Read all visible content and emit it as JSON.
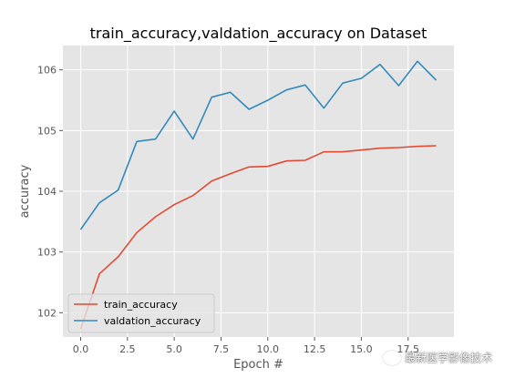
{
  "chart_data": {
    "type": "line",
    "title": "train_accuracy,valdation_accuracy on Dataset",
    "xlabel": "Epoch #",
    "ylabel": "accuracy",
    "xlim": [
      -0.95,
      19.95
    ],
    "ylim": [
      101.6,
      106.4
    ],
    "xticks": [
      0.0,
      2.5,
      5.0,
      7.5,
      10.0,
      12.5,
      15.0,
      17.5
    ],
    "xtick_labels": [
      "0.0",
      "2.5",
      "5.0",
      "7.5",
      "10.0",
      "12.5",
      "15.0",
      "17.5"
    ],
    "yticks": [
      102,
      103,
      104,
      105,
      106
    ],
    "ytick_labels": [
      "102",
      "103",
      "104",
      "105",
      "106"
    ],
    "grid": true,
    "legend_position": "lower-left",
    "x": [
      0,
      1,
      2,
      3,
      4,
      5,
      6,
      7,
      8,
      9,
      10,
      11,
      12,
      13,
      14,
      15,
      16,
      17,
      18,
      19
    ],
    "series": [
      {
        "name": "train_accuracy",
        "color": "#E24A33",
        "values": [
          101.73,
          102.64,
          102.92,
          103.32,
          103.58,
          103.78,
          103.93,
          104.17,
          104.29,
          104.4,
          104.41,
          104.5,
          104.51,
          104.65,
          104.65,
          104.68,
          104.71,
          104.72,
          104.74,
          104.75
        ]
      },
      {
        "name": "valdation_accuracy",
        "color": "#348ABD",
        "values": [
          103.37,
          103.81,
          104.02,
          104.82,
          104.86,
          105.32,
          104.86,
          105.55,
          105.63,
          105.35,
          105.5,
          105.67,
          105.75,
          105.37,
          105.78,
          105.86,
          106.09,
          105.74,
          106.14,
          105.83
        ]
      }
    ]
  },
  "watermark": {
    "icon": "wechat-icon",
    "text": "最新医学影像技术"
  }
}
